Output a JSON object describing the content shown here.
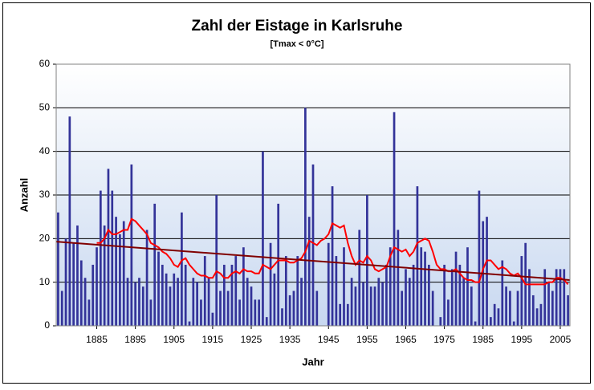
{
  "chart_data": {
    "type": "bar",
    "title": "Zahl der Eistage in Karlsruhe",
    "subtitle": "[Tmax < 0°C]",
    "x_label": "Jahr",
    "y_label": "Anzahl",
    "categories": [
      null,
      null,
      null,
      null,
      null,
      null,
      null,
      null,
      null,
      null,
      "1885",
      null,
      null,
      null,
      null,
      null,
      null,
      null,
      null,
      null,
      "1895",
      null,
      null,
      null,
      null,
      null,
      null,
      null,
      null,
      null,
      "1905",
      null,
      null,
      null,
      null,
      null,
      null,
      null,
      null,
      null,
      "1915",
      null,
      null,
      null,
      null,
      null,
      null,
      null,
      null,
      null,
      "1925",
      null,
      null,
      null,
      null,
      null,
      null,
      null,
      null,
      null,
      "1935",
      null,
      null,
      null,
      null,
      null,
      null,
      null,
      null,
      null,
      "1945",
      null,
      null,
      null,
      null,
      null,
      null,
      null,
      null,
      null,
      "1955",
      null,
      null,
      null,
      null,
      null,
      null,
      null,
      null,
      null,
      "1965",
      null,
      null,
      null,
      null,
      null,
      null,
      null,
      null,
      null,
      "1975",
      null,
      null,
      null,
      null,
      null,
      null,
      null,
      null,
      null,
      "1985",
      null,
      null,
      null,
      null,
      null,
      null,
      null,
      null,
      null,
      "1995",
      null,
      null,
      null,
      null,
      null,
      null,
      null,
      null,
      null,
      "2005",
      null,
      null
    ],
    "series": [
      {
        "type": "bar",
        "color": "#333399",
        "values": [
          26,
          8,
          20,
          48,
          19,
          23,
          15,
          11,
          6,
          14,
          18,
          31,
          23,
          36,
          31,
          25,
          21,
          24,
          11,
          37,
          10,
          11,
          9,
          22,
          6,
          28,
          17,
          14,
          12,
          9,
          12,
          11,
          26,
          14,
          1,
          11,
          10,
          6,
          16,
          11,
          3,
          30,
          8,
          14,
          8,
          14,
          16,
          6,
          18,
          11,
          9,
          6,
          6,
          40,
          2,
          19,
          12,
          28,
          4,
          16,
          7,
          8,
          16,
          11,
          50,
          25,
          37,
          8,
          0,
          0,
          19,
          32,
          16,
          5,
          18,
          5,
          11,
          9,
          22,
          10,
          30,
          9,
          9,
          11,
          10,
          14,
          18,
          49,
          22,
          8,
          13,
          11,
          14,
          32,
          18,
          17,
          14,
          8,
          0,
          2,
          14,
          6,
          13,
          17,
          14,
          11,
          18,
          9,
          1,
          31,
          24,
          25,
          2,
          5,
          4,
          15,
          9,
          8,
          1,
          8,
          16,
          19,
          13,
          7,
          4,
          5,
          13,
          10,
          8,
          13,
          13,
          13,
          7
        ]
      },
      {
        "type": "line",
        "color": "#ff0000",
        "values": [
          null,
          null,
          null,
          null,
          null,
          null,
          null,
          null,
          null,
          null,
          19,
          19,
          20,
          22,
          21,
          21,
          21.5,
          22,
          22,
          24.5,
          24,
          23,
          22,
          21,
          19,
          18.5,
          18,
          17,
          16.5,
          15.5,
          14,
          13.5,
          15,
          15.5,
          14,
          13,
          12,
          11.5,
          11.5,
          11,
          11,
          12.5,
          12,
          11,
          11,
          12,
          12.5,
          12,
          13,
          12.5,
          12.5,
          12,
          12,
          14,
          13.5,
          13,
          14,
          15,
          15,
          15,
          14.5,
          14.5,
          15,
          15.5,
          17,
          19.5,
          19,
          18.5,
          19.5,
          20,
          21,
          23.5,
          23,
          22.5,
          23,
          19,
          16,
          14,
          15,
          14.5,
          16,
          15,
          13,
          12.5,
          13,
          13.5,
          16,
          18,
          17.5,
          17,
          17.5,
          16,
          17,
          19,
          19.5,
          20,
          19.5,
          17,
          14,
          13,
          13,
          12.5,
          12.5,
          13,
          12,
          11,
          10.5,
          10.5,
          10,
          10,
          13,
          15,
          15,
          14,
          13,
          13.5,
          13,
          12,
          11.5,
          12,
          11,
          9.5,
          9.5,
          9.5,
          9.5,
          9.5,
          9.5,
          10,
          10,
          11,
          11,
          10.5,
          9.5
        ]
      }
    ],
    "trend": {
      "color": "#800000",
      "start": 19.3,
      "end": 10.5
    },
    "ylim": [
      0,
      60
    ],
    "yticks": [
      0,
      10,
      20,
      30,
      40,
      50,
      60
    ],
    "grid": true
  }
}
